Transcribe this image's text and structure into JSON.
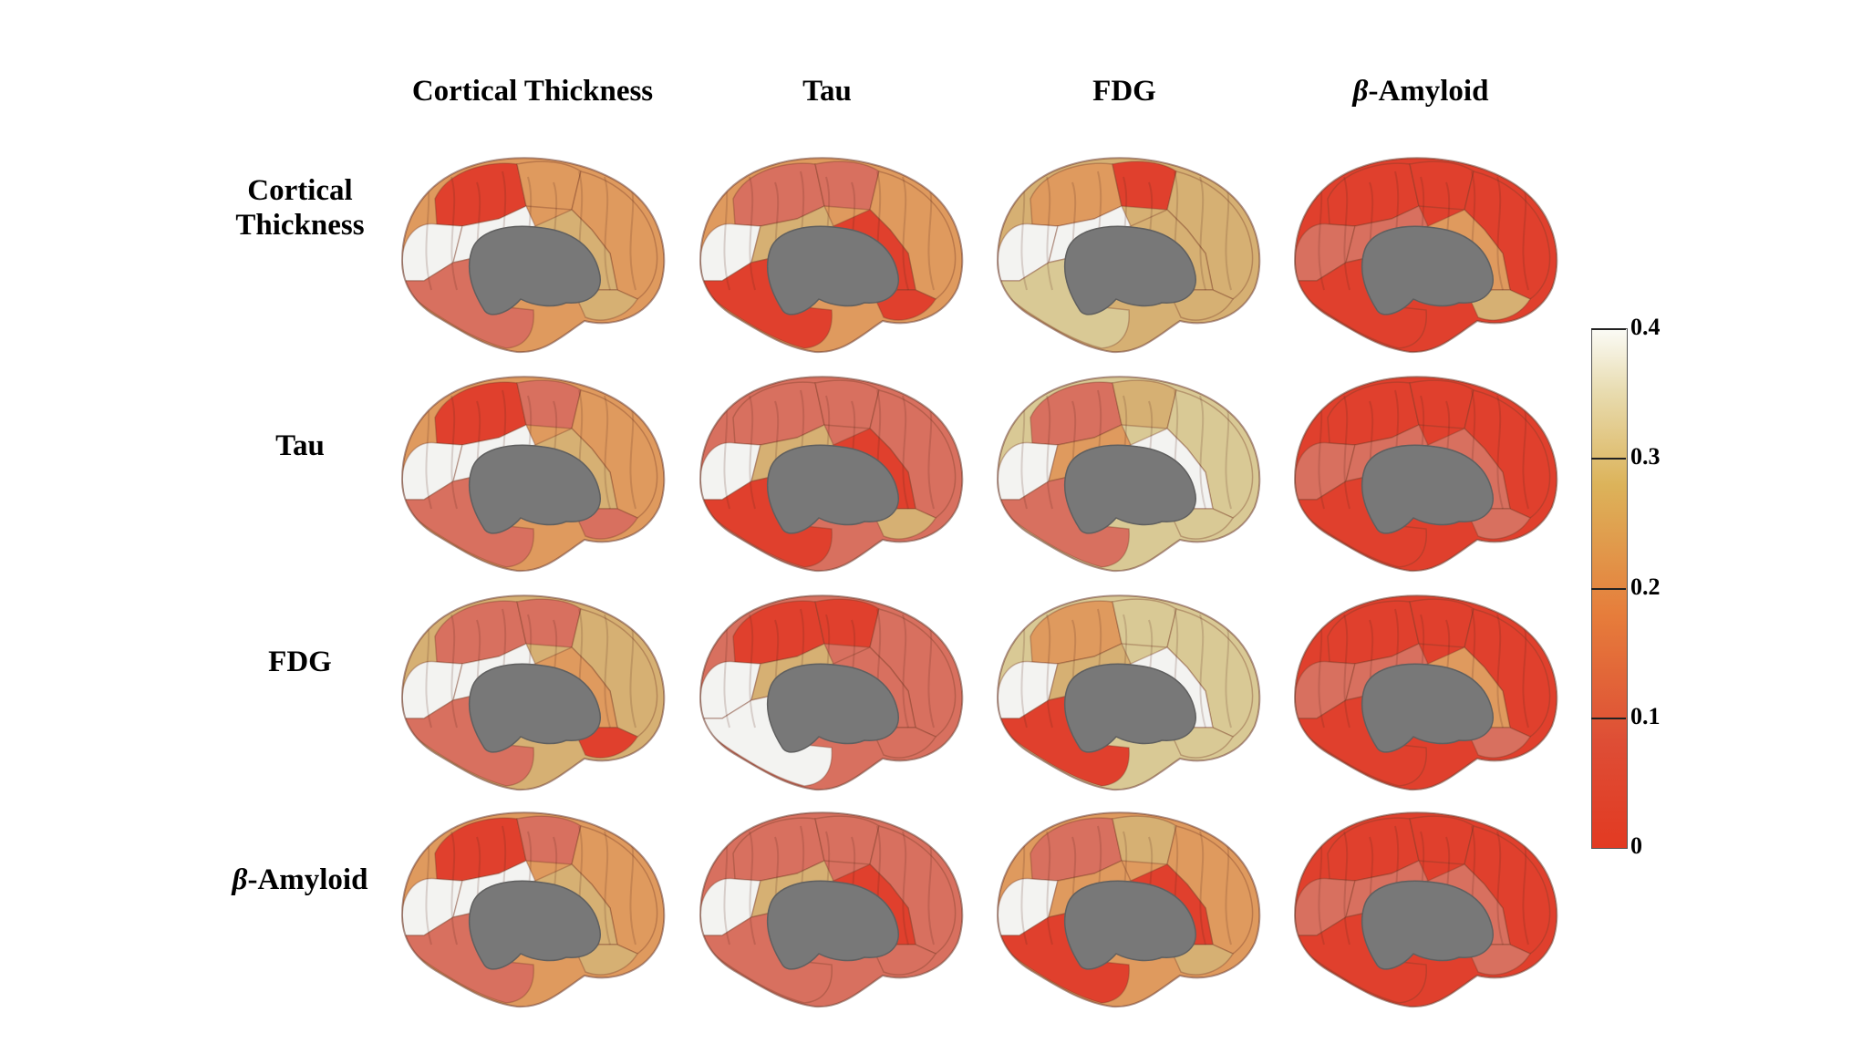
{
  "columns": [
    {
      "label": "Cortical Thickness"
    },
    {
      "label": "Tau"
    },
    {
      "label": "FDG"
    },
    {
      "label_greek": "β",
      "label_rest": "-Amyloid"
    }
  ],
  "rows": [
    {
      "line1": "Cortical",
      "line2": "Thickness"
    },
    {
      "line1": "Tau"
    },
    {
      "line1": "FDG"
    },
    {
      "label_greek": "β",
      "label_rest": "-Amyloid"
    }
  ],
  "colorbar": {
    "ticks": [
      "0",
      "0.1",
      "0.2",
      "0.3",
      "0.4"
    ],
    "colors": [
      "#e23a22",
      "#de4d35",
      "#e67d3b",
      "#dcb35a",
      "#e8dcb0",
      "#fbfbf6"
    ]
  },
  "palette": {
    "red": "#e0402d",
    "salmon": "#d8705f",
    "orange": "#df9a5e",
    "tan": "#d6b073",
    "khaki": "#d9c995",
    "cream": "#ebe4cb",
    "white": "#f3f3f1",
    "gray": "#787878"
  },
  "tiles": [
    [
      "red",
      "orange",
      "orange",
      "white",
      "white",
      "tan",
      "tan",
      "salmon"
    ],
    [
      "salmon",
      "salmon",
      "orange",
      "white",
      "tan",
      "red",
      "red",
      "red"
    ],
    [
      "orange",
      "red",
      "tan",
      "white",
      "white",
      "tan",
      "tan",
      "khaki"
    ],
    [
      "red",
      "red",
      "red",
      "salmon",
      "salmon",
      "orange",
      "tan",
      "red"
    ],
    [
      "red",
      "salmon",
      "orange",
      "white",
      "white",
      "tan",
      "salmon",
      "salmon"
    ],
    [
      "salmon",
      "salmon",
      "salmon",
      "white",
      "tan",
      "red",
      "tan",
      "red"
    ],
    [
      "salmon",
      "tan",
      "khaki",
      "white",
      "orange",
      "white",
      "khaki",
      "salmon"
    ],
    [
      "red",
      "red",
      "red",
      "salmon",
      "salmon",
      "salmon",
      "salmon",
      "red"
    ],
    [
      "salmon",
      "salmon",
      "tan",
      "white",
      "white",
      "orange",
      "red",
      "salmon"
    ],
    [
      "red",
      "red",
      "salmon",
      "white",
      "tan",
      "salmon",
      "salmon",
      "white"
    ],
    [
      "orange",
      "khaki",
      "khaki",
      "white",
      "tan",
      "white",
      "khaki",
      "red"
    ],
    [
      "red",
      "red",
      "red",
      "salmon",
      "salmon",
      "orange",
      "salmon",
      "red"
    ],
    [
      "red",
      "salmon",
      "orange",
      "white",
      "white",
      "tan",
      "tan",
      "salmon"
    ],
    [
      "salmon",
      "salmon",
      "salmon",
      "white",
      "tan",
      "red",
      "salmon",
      "salmon"
    ],
    [
      "salmon",
      "tan",
      "orange",
      "white",
      "orange",
      "red",
      "tan",
      "red"
    ],
    [
      "red",
      "red",
      "red",
      "salmon",
      "salmon",
      "salmon",
      "salmon",
      "red"
    ]
  ]
}
